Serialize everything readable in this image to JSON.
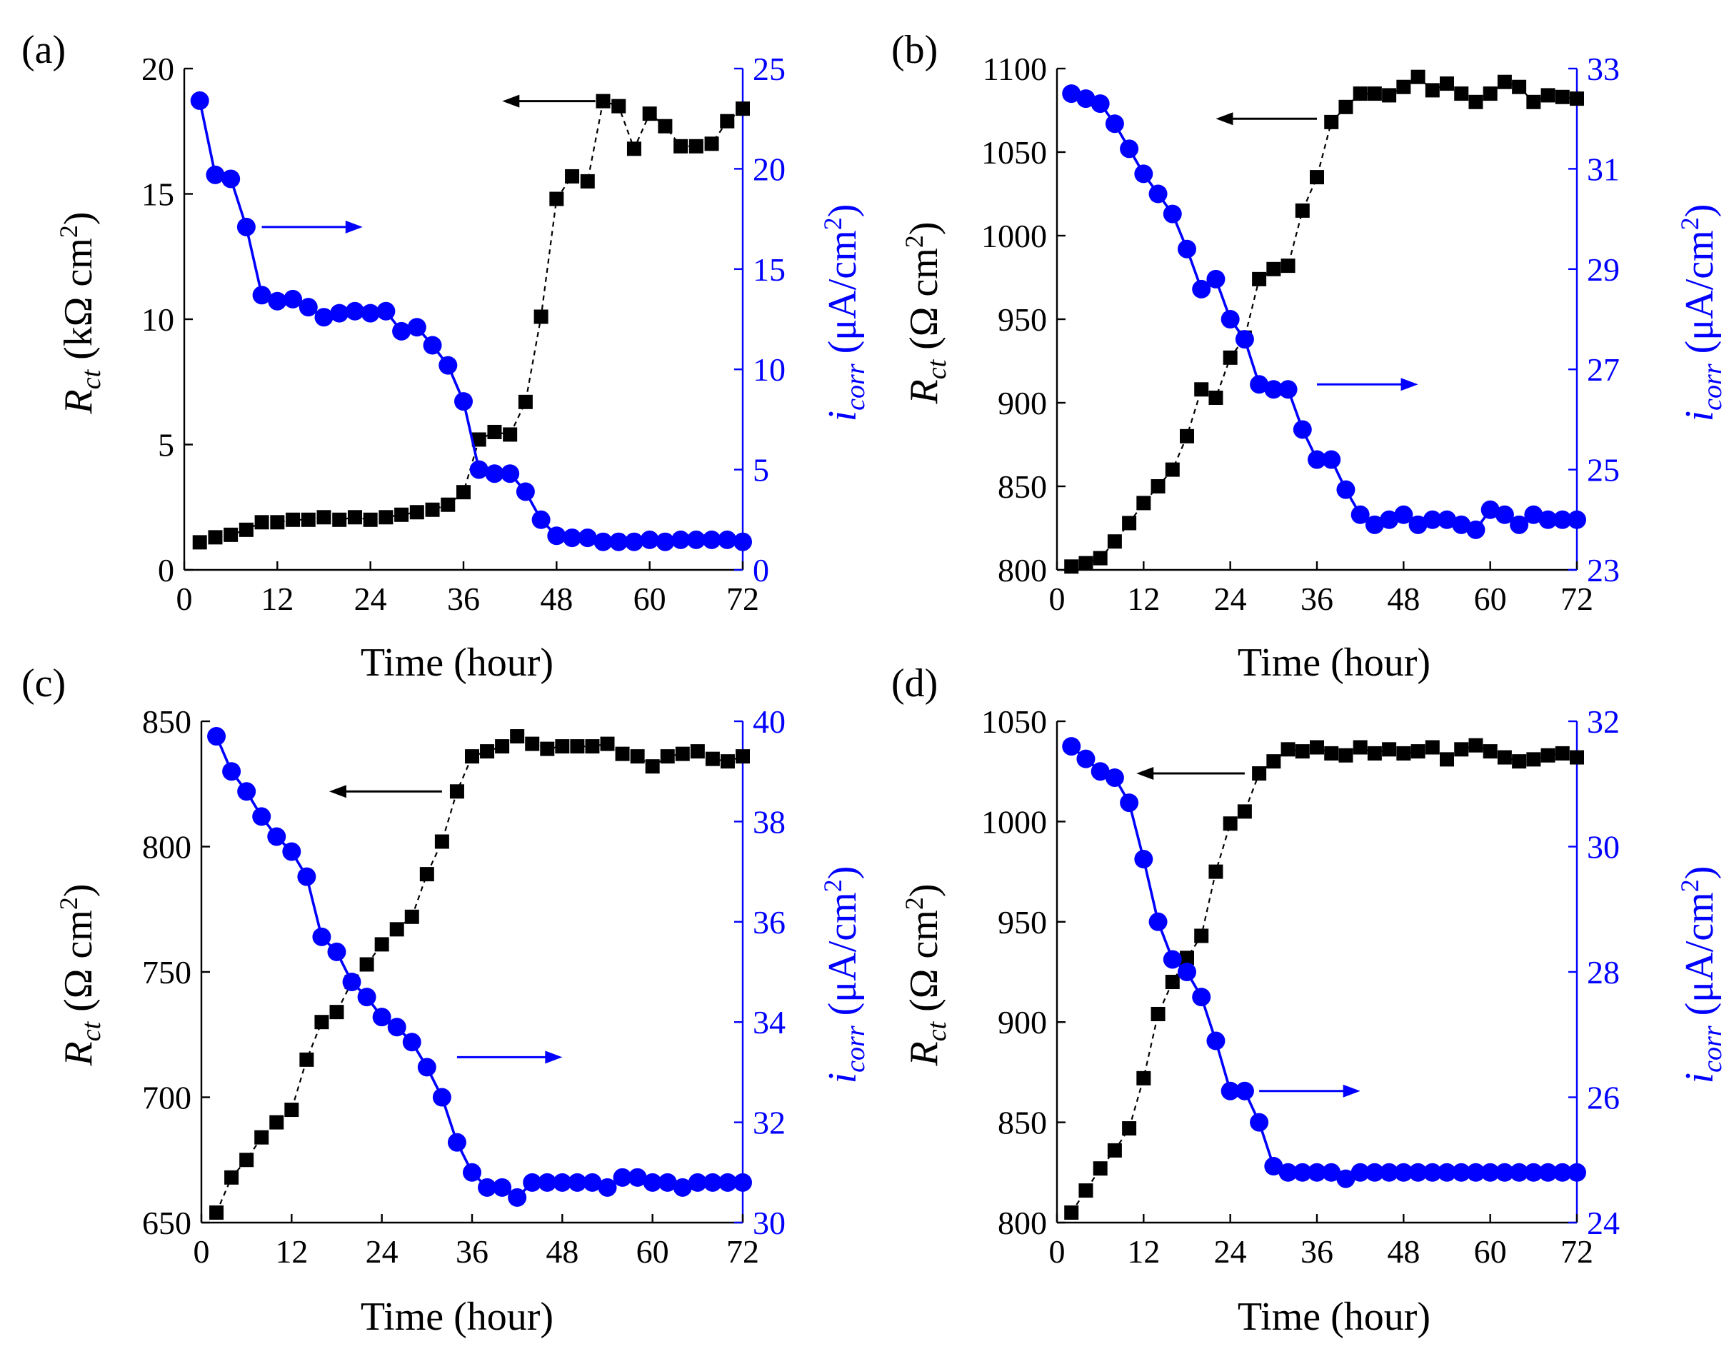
{
  "figure": {
    "series_colors": {
      "rct": "#000000",
      "icorr": "#0000ff"
    }
  },
  "chart_data": [
    {
      "type": "line",
      "panel_label": "(a)",
      "xlabel": "Time (hour)",
      "ylabel_left": {
        "main": "R",
        "sub": "ct",
        "unit": " (kΩ cm",
        "sup": "2",
        "close": ")"
      },
      "ylabel_right": {
        "main": "i",
        "sub": "corr",
        "unit": " (μA/cm",
        "sup": "2",
        "close": ")"
      },
      "xlim": [
        0,
        72
      ],
      "xticks": [
        0,
        12,
        24,
        36,
        48,
        60,
        72
      ],
      "ylim_left": [
        0,
        20
      ],
      "yticks_left": [
        0,
        5,
        10,
        15,
        20
      ],
      "ylim_right": [
        0,
        25
      ],
      "yticks_right": [
        0,
        5,
        10,
        15,
        20,
        25
      ],
      "arrows": [
        {
          "series": "rct",
          "direction": "left",
          "from": [
            53,
            18.7
          ],
          "to": [
            41,
            18.7
          ]
        },
        {
          "series": "icorr",
          "direction": "right",
          "from": [
            10,
            17.1
          ],
          "to": [
            23,
            17.1
          ]
        }
      ],
      "series": [
        {
          "name": "Rct",
          "axis": "left",
          "marker": "square",
          "line": "dashed",
          "color": "#000000",
          "x": [
            2,
            4,
            6,
            8,
            10,
            12,
            14,
            16,
            18,
            20,
            22,
            24,
            26,
            28,
            30,
            32,
            34,
            36,
            38,
            40,
            42,
            44,
            46,
            48,
            50,
            52,
            54,
            56,
            58,
            60,
            62,
            64,
            66,
            68,
            70,
            72
          ],
          "values": [
            1.1,
            1.3,
            1.4,
            1.6,
            1.9,
            1.9,
            2.0,
            2.0,
            2.1,
            2.0,
            2.1,
            2.0,
            2.1,
            2.2,
            2.3,
            2.4,
            2.6,
            3.1,
            5.2,
            5.5,
            5.4,
            6.7,
            10.1,
            14.8,
            15.7,
            15.5,
            18.7,
            18.5,
            16.8,
            18.2,
            17.7,
            16.9,
            16.9,
            17.0,
            17.9,
            18.4
          ]
        },
        {
          "name": "icorr",
          "axis": "right",
          "marker": "circle",
          "line": "solid",
          "color": "#0000ff",
          "x": [
            2,
            4,
            6,
            8,
            10,
            12,
            14,
            16,
            18,
            20,
            22,
            24,
            26,
            28,
            30,
            32,
            34,
            36,
            38,
            40,
            42,
            44,
            46,
            48,
            50,
            52,
            54,
            56,
            58,
            60,
            62,
            64,
            66,
            68,
            70,
            72
          ],
          "values": [
            23.4,
            19.7,
            19.5,
            17.1,
            13.7,
            13.4,
            13.5,
            13.1,
            12.6,
            12.8,
            12.9,
            12.8,
            12.9,
            11.9,
            12.1,
            11.2,
            10.2,
            8.4,
            5.0,
            4.8,
            4.8,
            3.9,
            2.5,
            1.7,
            1.6,
            1.6,
            1.4,
            1.4,
            1.4,
            1.5,
            1.4,
            1.5,
            1.5,
            1.5,
            1.5,
            1.4
          ]
        }
      ]
    },
    {
      "type": "line",
      "panel_label": "(b)",
      "xlabel": "Time (hour)",
      "ylabel_left": {
        "main": "R",
        "sub": "ct",
        "unit": " (Ω cm",
        "sup": "2",
        "close": ")"
      },
      "ylabel_right": {
        "main": "i",
        "sub": "corr",
        "unit": " (μA/cm",
        "sup": "2",
        "close": ")"
      },
      "xlim": [
        0,
        72
      ],
      "xticks": [
        0,
        12,
        24,
        36,
        48,
        60,
        72
      ],
      "ylim_left": [
        800,
        1100
      ],
      "yticks_left": [
        800,
        850,
        900,
        950,
        1000,
        1050,
        1100
      ],
      "ylim_right": [
        23,
        33
      ],
      "yticks_right": [
        23,
        25,
        27,
        29,
        31,
        33
      ],
      "arrows": [
        {
          "series": "rct",
          "direction": "left",
          "from": [
            36,
            1070
          ],
          "to": [
            22,
            1070
          ]
        },
        {
          "series": "icorr",
          "direction": "right",
          "from": [
            36,
            26.7
          ],
          "to": [
            50,
            26.7
          ]
        }
      ],
      "series": [
        {
          "name": "Rct",
          "axis": "left",
          "marker": "square",
          "line": "dashed",
          "color": "#000000",
          "x": [
            2,
            4,
            6,
            8,
            10,
            12,
            14,
            16,
            18,
            20,
            22,
            24,
            26,
            28,
            30,
            32,
            34,
            36,
            38,
            40,
            42,
            44,
            46,
            48,
            50,
            52,
            54,
            56,
            58,
            60,
            62,
            64,
            66,
            68,
            70,
            72
          ],
          "values": [
            802,
            804,
            807,
            817,
            828,
            840,
            850,
            860,
            880,
            908,
            903,
            927,
            939,
            974,
            980,
            982,
            1015,
            1035,
            1068,
            1077,
            1085,
            1085,
            1084,
            1089,
            1095,
            1087,
            1091,
            1085,
            1080,
            1085,
            1092,
            1089,
            1080,
            1084,
            1083,
            1082
          ]
        },
        {
          "name": "icorr",
          "axis": "right",
          "marker": "circle",
          "line": "solid",
          "color": "#0000ff",
          "x": [
            2,
            4,
            6,
            8,
            10,
            12,
            14,
            16,
            18,
            20,
            22,
            24,
            26,
            28,
            30,
            32,
            34,
            36,
            38,
            40,
            42,
            44,
            46,
            48,
            50,
            52,
            54,
            56,
            58,
            60,
            62,
            64,
            66,
            68,
            70,
            72
          ],
          "values": [
            32.5,
            32.4,
            32.3,
            31.9,
            31.4,
            30.9,
            30.5,
            30.1,
            29.4,
            28.6,
            28.8,
            28.0,
            27.6,
            26.7,
            26.6,
            26.6,
            25.8,
            25.2,
            25.2,
            24.6,
            24.1,
            23.9,
            24.0,
            24.1,
            23.9,
            24.0,
            24.0,
            23.9,
            23.8,
            24.2,
            24.1,
            23.9,
            24.1,
            24.0,
            24.0,
            24.0
          ]
        }
      ]
    },
    {
      "type": "line",
      "panel_label": "(c)",
      "xlabel": "Time (hour)",
      "ylabel_left": {
        "main": "R",
        "sub": "ct",
        "unit": " (Ω cm",
        "sup": "2",
        "close": ")"
      },
      "ylabel_right": {
        "main": "i",
        "sub": "corr",
        "unit": " (μA/cm",
        "sup": "2",
        "close": ")"
      },
      "xlim": [
        0,
        72
      ],
      "xticks": [
        0,
        12,
        24,
        36,
        48,
        60,
        72
      ],
      "ylim_left": [
        650,
        850
      ],
      "yticks_left": [
        650,
        700,
        750,
        800,
        850
      ],
      "ylim_right": [
        30,
        40
      ],
      "yticks_right": [
        30,
        32,
        34,
        36,
        38,
        40
      ],
      "arrows": [
        {
          "series": "rct",
          "direction": "left",
          "from": [
            32,
            822
          ],
          "to": [
            17,
            822
          ]
        },
        {
          "series": "icorr",
          "direction": "right",
          "from": [
            34,
            33.3
          ],
          "to": [
            48,
            33.3
          ]
        }
      ],
      "series": [
        {
          "name": "Rct",
          "axis": "left",
          "marker": "square",
          "line": "dashed",
          "color": "#000000",
          "x": [
            2,
            4,
            6,
            8,
            10,
            12,
            14,
            16,
            18,
            20,
            22,
            24,
            26,
            28,
            30,
            32,
            34,
            36,
            38,
            40,
            42,
            44,
            46,
            48,
            50,
            52,
            54,
            56,
            58,
            60,
            62,
            64,
            66,
            68,
            70,
            72
          ],
          "values": [
            654,
            668,
            675,
            684,
            690,
            695,
            715,
            730,
            734,
            746,
            753,
            761,
            767,
            772,
            789,
            802,
            822,
            836,
            838,
            840,
            844,
            841,
            839,
            840,
            840,
            840,
            841,
            837,
            836,
            832,
            836,
            837,
            838,
            835,
            834,
            836
          ]
        },
        {
          "name": "icorr",
          "axis": "right",
          "marker": "circle",
          "line": "solid",
          "color": "#0000ff",
          "x": [
            2,
            4,
            6,
            8,
            10,
            12,
            14,
            16,
            18,
            20,
            22,
            24,
            26,
            28,
            30,
            32,
            34,
            36,
            38,
            40,
            42,
            44,
            46,
            48,
            50,
            52,
            54,
            56,
            58,
            60,
            62,
            64,
            66,
            68,
            70,
            72
          ],
          "values": [
            39.7,
            39.0,
            38.6,
            38.1,
            37.7,
            37.4,
            36.9,
            35.7,
            35.4,
            34.8,
            34.5,
            34.1,
            33.9,
            33.6,
            33.1,
            32.5,
            31.6,
            31.0,
            30.7,
            30.7,
            30.5,
            30.8,
            30.8,
            30.8,
            30.8,
            30.8,
            30.7,
            30.9,
            30.9,
            30.8,
            30.8,
            30.7,
            30.8,
            30.8,
            30.8,
            30.8
          ]
        }
      ]
    },
    {
      "type": "line",
      "panel_label": "(d)",
      "xlabel": "Time (hour)",
      "ylabel_left": {
        "main": "R",
        "sub": "ct",
        "unit": " (Ω cm",
        "sup": "2",
        "close": ")"
      },
      "ylabel_right": {
        "main": "i",
        "sub": "corr",
        "unit": " (μA/cm",
        "sup": "2",
        "close": ")"
      },
      "xlim": [
        0,
        72
      ],
      "xticks": [
        0,
        12,
        24,
        36,
        48,
        60,
        72
      ],
      "ylim_left": [
        800,
        1050
      ],
      "yticks_left": [
        800,
        850,
        900,
        950,
        1000,
        1050
      ],
      "ylim_right": [
        24,
        32
      ],
      "yticks_right": [
        24,
        26,
        28,
        30,
        32
      ],
      "arrows": [
        {
          "series": "rct",
          "direction": "left",
          "from": [
            26,
            1024
          ],
          "to": [
            11,
            1024
          ]
        },
        {
          "series": "icorr",
          "direction": "right",
          "from": [
            28,
            26.1
          ],
          "to": [
            42,
            26.1
          ]
        }
      ],
      "series": [
        {
          "name": "Rct",
          "axis": "left",
          "marker": "square",
          "line": "dashed",
          "color": "#000000",
          "x": [
            2,
            4,
            6,
            8,
            10,
            12,
            14,
            16,
            18,
            20,
            22,
            24,
            26,
            28,
            30,
            32,
            34,
            36,
            38,
            40,
            42,
            44,
            46,
            48,
            50,
            52,
            54,
            56,
            58,
            60,
            62,
            64,
            66,
            68,
            70,
            72
          ],
          "values": [
            805,
            816,
            827,
            836,
            847,
            872,
            904,
            920,
            932,
            943,
            975,
            999,
            1005,
            1024,
            1030,
            1036,
            1035,
            1037,
            1034,
            1033,
            1037,
            1034,
            1036,
            1034,
            1035,
            1037,
            1031,
            1036,
            1038,
            1035,
            1032,
            1030,
            1031,
            1033,
            1034,
            1032
          ]
        },
        {
          "name": "icorr",
          "axis": "right",
          "marker": "circle",
          "line": "solid",
          "color": "#0000ff",
          "x": [
            2,
            4,
            6,
            8,
            10,
            12,
            14,
            16,
            18,
            20,
            22,
            24,
            26,
            28,
            30,
            32,
            34,
            36,
            38,
            40,
            42,
            44,
            46,
            48,
            50,
            52,
            54,
            56,
            58,
            60,
            62,
            64,
            66,
            68,
            70,
            72
          ],
          "values": [
            31.6,
            31.4,
            31.2,
            31.1,
            30.7,
            29.8,
            28.8,
            28.2,
            28.0,
            27.6,
            26.9,
            26.1,
            26.1,
            25.6,
            24.9,
            24.8,
            24.8,
            24.8,
            24.8,
            24.7,
            24.8,
            24.8,
            24.8,
            24.8,
            24.8,
            24.8,
            24.8,
            24.8,
            24.8,
            24.8,
            24.8,
            24.8,
            24.8,
            24.8,
            24.8,
            24.8
          ]
        }
      ]
    }
  ]
}
